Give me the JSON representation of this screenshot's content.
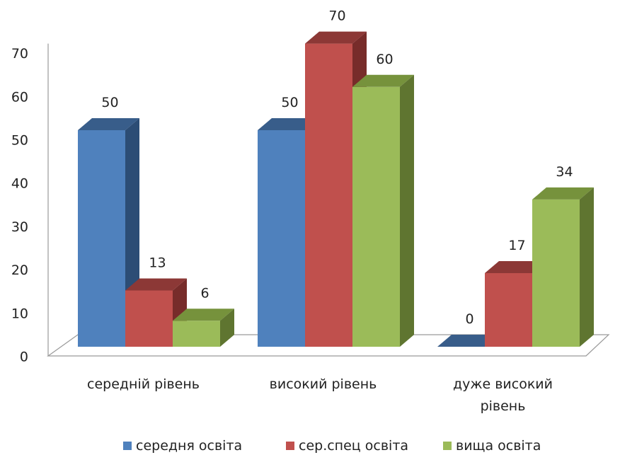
{
  "chart_data": {
    "type": "bar",
    "categories": [
      [
        "середній рівень"
      ],
      [
        "високий рівень"
      ],
      [
        "дуже високий",
        "рівень"
      ]
    ],
    "series": [
      {
        "name": "середня освіта",
        "values": [
          50,
          50,
          0
        ],
        "color": "#4F81BD",
        "top": "#385D8A",
        "side": "#2C4D75"
      },
      {
        "name": "сер.спец освіта",
        "values": [
          13,
          70,
          17
        ],
        "color": "#C0504D",
        "top": "#8C3836",
        "side": "#772C2A"
      },
      {
        "name": "вища освіта",
        "values": [
          6,
          60,
          34
        ],
        "color": "#9BBB59",
        "top": "#76923C",
        "side": "#5F7530"
      }
    ],
    "ylim": [
      0,
      70
    ],
    "yticks": [
      0,
      10,
      20,
      30,
      40,
      50,
      60,
      70
    ],
    "grid": false,
    "legend": "bottom",
    "style": "3d-clustered-column"
  }
}
